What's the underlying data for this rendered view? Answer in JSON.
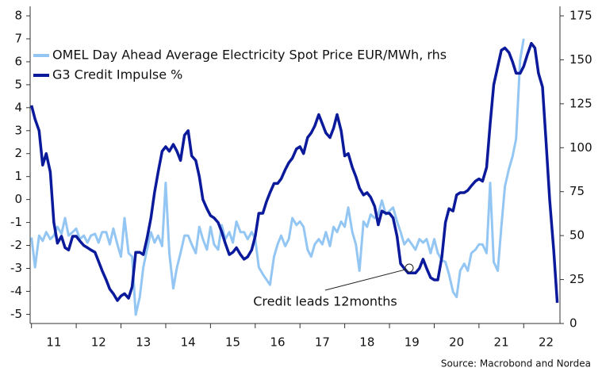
{
  "chart_data": {
    "type": "line",
    "legend": "top-left",
    "annotations": [
      "Credit leads 12months"
    ],
    "source": "Source: Macrobond and Nordea",
    "x": [
      2011.0,
      2011.08,
      2011.17,
      2011.25,
      2011.33,
      2011.42,
      2011.5,
      2011.58,
      2011.67,
      2011.75,
      2011.83,
      2011.92,
      2012.0,
      2012.08,
      2012.17,
      2012.25,
      2012.33,
      2012.42,
      2012.5,
      2012.58,
      2012.67,
      2012.75,
      2012.83,
      2012.92,
      2013.0,
      2013.08,
      2013.17,
      2013.25,
      2013.33,
      2013.42,
      2013.5,
      2013.58,
      2013.67,
      2013.75,
      2013.83,
      2013.92,
      2014.0,
      2014.08,
      2014.17,
      2014.25,
      2014.33,
      2014.42,
      2014.5,
      2014.58,
      2014.67,
      2014.75,
      2014.83,
      2014.92,
      2015.0,
      2015.08,
      2015.17,
      2015.25,
      2015.33,
      2015.42,
      2015.5,
      2015.58,
      2015.67,
      2015.75,
      2015.83,
      2015.92,
      2016.0,
      2016.08,
      2016.17,
      2016.25,
      2016.33,
      2016.42,
      2016.5,
      2016.58,
      2016.67,
      2016.75,
      2016.83,
      2016.92,
      2017.0,
      2017.08,
      2017.17,
      2017.25,
      2017.33,
      2017.42,
      2017.5,
      2017.58,
      2017.67,
      2017.75,
      2017.83,
      2017.92,
      2018.0,
      2018.08,
      2018.17,
      2018.25,
      2018.33,
      2018.42,
      2018.5,
      2018.58,
      2018.67,
      2018.75,
      2018.83,
      2018.92,
      2019.0,
      2019.08,
      2019.17,
      2019.25,
      2019.33,
      2019.42,
      2019.5,
      2019.58,
      2019.67,
      2019.75,
      2019.83,
      2019.92,
      2020.0,
      2020.08,
      2020.17,
      2020.25,
      2020.33,
      2020.42,
      2020.5,
      2020.58,
      2020.67,
      2020.75,
      2020.83,
      2020.92,
      2021.0,
      2021.08,
      2021.17,
      2021.25,
      2021.33,
      2021.42,
      2021.5,
      2021.58,
      2021.67,
      2021.75,
      2021.83,
      2021.92,
      2022.0,
      2022.08,
      2022.17,
      2022.25,
      2022.33,
      2022.42,
      2022.5,
      2022.58,
      2022.67,
      2022.75
    ],
    "series": [
      {
        "name": "OMEL Day Ahead Average Electricity Spot Price EUR/MWh, rhs",
        "color": "#94c6f4",
        "axis": "y2",
        "values": [
          49,
          32,
          50,
          47,
          52,
          48,
          50,
          55,
          51,
          60,
          50,
          52,
          54,
          48,
          50,
          46,
          50,
          51,
          46,
          52,
          52,
          45,
          54,
          45,
          38,
          60,
          40,
          38,
          5,
          15,
          32,
          42,
          52,
          46,
          50,
          44,
          80,
          40,
          20,
          32,
          40,
          50,
          50,
          45,
          40,
          55,
          48,
          42,
          55,
          45,
          42,
          56,
          48,
          52,
          46,
          58,
          52,
          52,
          48,
          52,
          48,
          32,
          28,
          25,
          22,
          38,
          45,
          50,
          44,
          48,
          60,
          56,
          58,
          55,
          42,
          38,
          45,
          48,
          45,
          52,
          44,
          55,
          52,
          58,
          55,
          66,
          52,
          45,
          30,
          58,
          55,
          62,
          60,
          62,
          70,
          62,
          64,
          66,
          58,
          52,
          45,
          48,
          45,
          42,
          48,
          46,
          48,
          40,
          48,
          40,
          36,
          35,
          28,
          18,
          15,
          30,
          34,
          30,
          40,
          42,
          45,
          45,
          40,
          80,
          35,
          30,
          55,
          78,
          88,
          95,
          105,
          150,
          162,
          null,
          null,
          null,
          null,
          null,
          null,
          null,
          null,
          null
        ]
      },
      {
        "name": "G3 Credit Impulse %",
        "color": "#0b1a9b",
        "values": [
          4.1,
          3.5,
          3.0,
          1.5,
          2.0,
          1.2,
          -1.0,
          -1.9,
          -1.6,
          -2.1,
          -2.2,
          -1.6,
          -1.6,
          -1.8,
          -2.0,
          -2.1,
          -2.2,
          -2.3,
          -2.7,
          -3.1,
          -3.5,
          -3.9,
          -4.1,
          -4.4,
          -4.2,
          -4.1,
          -4.3,
          -3.8,
          -2.3,
          -2.3,
          -2.4,
          -1.7,
          -0.8,
          0.3,
          1.2,
          2.1,
          2.3,
          2.1,
          2.4,
          2.1,
          1.7,
          2.8,
          3.0,
          1.9,
          1.7,
          1.0,
          0.0,
          -0.4,
          -0.7,
          -0.8,
          -1.0,
          -1.4,
          -1.9,
          -2.4,
          -2.3,
          -2.1,
          -2.4,
          -2.6,
          -2.5,
          -2.2,
          -1.6,
          -0.6,
          -0.6,
          -0.1,
          0.3,
          0.7,
          0.7,
          0.9,
          1.3,
          1.6,
          1.8,
          2.2,
          2.3,
          2.0,
          2.7,
          2.9,
          3.2,
          3.7,
          3.3,
          2.9,
          2.7,
          3.1,
          3.7,
          3.0,
          1.9,
          2.0,
          1.4,
          1.0,
          0.5,
          0.2,
          0.3,
          0.1,
          -0.3,
          -1.1,
          -0.5,
          -0.6,
          -0.6,
          -0.8,
          -1.6,
          -2.8,
          -3.0,
          -3.2,
          -3.2,
          -3.2,
          -3.0,
          -2.6,
          -3.0,
          -3.4,
          -3.5,
          -3.5,
          -2.5,
          -1.0,
          -0.4,
          -0.5,
          0.2,
          0.3,
          0.3,
          0.4,
          0.6,
          0.8,
          0.9,
          0.8,
          1.4,
          3.3,
          5.0,
          5.8,
          6.5,
          6.6,
          6.4,
          6.0,
          5.5,
          5.5,
          5.8,
          6.3,
          6.8,
          6.6,
          5.5,
          4.9,
          2.5,
          0.0,
          -2.2,
          -4.5
        ]
      }
    ],
    "xlim": [
      2010.97,
      2022.81
    ],
    "xticks": [
      {
        "value": 2011.5,
        "label": "11"
      },
      {
        "value": 2012.5,
        "label": "12"
      },
      {
        "value": 2013.5,
        "label": "13"
      },
      {
        "value": 2014.5,
        "label": "14"
      },
      {
        "value": 2015.5,
        "label": "15"
      },
      {
        "value": 2016.5,
        "label": "16"
      },
      {
        "value": 2017.5,
        "label": "17"
      },
      {
        "value": 2018.5,
        "label": "18"
      },
      {
        "value": 2019.5,
        "label": "19"
      },
      {
        "value": 2020.5,
        "label": "20"
      },
      {
        "value": 2021.5,
        "label": "21"
      },
      {
        "value": 2022.5,
        "label": "22"
      }
    ],
    "ylim": [
      -5.4,
      8
    ],
    "yticks": [
      -5,
      -4,
      -3,
      -2,
      -1,
      0,
      1,
      2,
      3,
      4,
      5,
      6,
      7,
      8
    ],
    "y2lim": [
      0,
      175
    ],
    "y2ticks": [
      0,
      25,
      50,
      75,
      100,
      125,
      150,
      175
    ],
    "grid": false
  }
}
